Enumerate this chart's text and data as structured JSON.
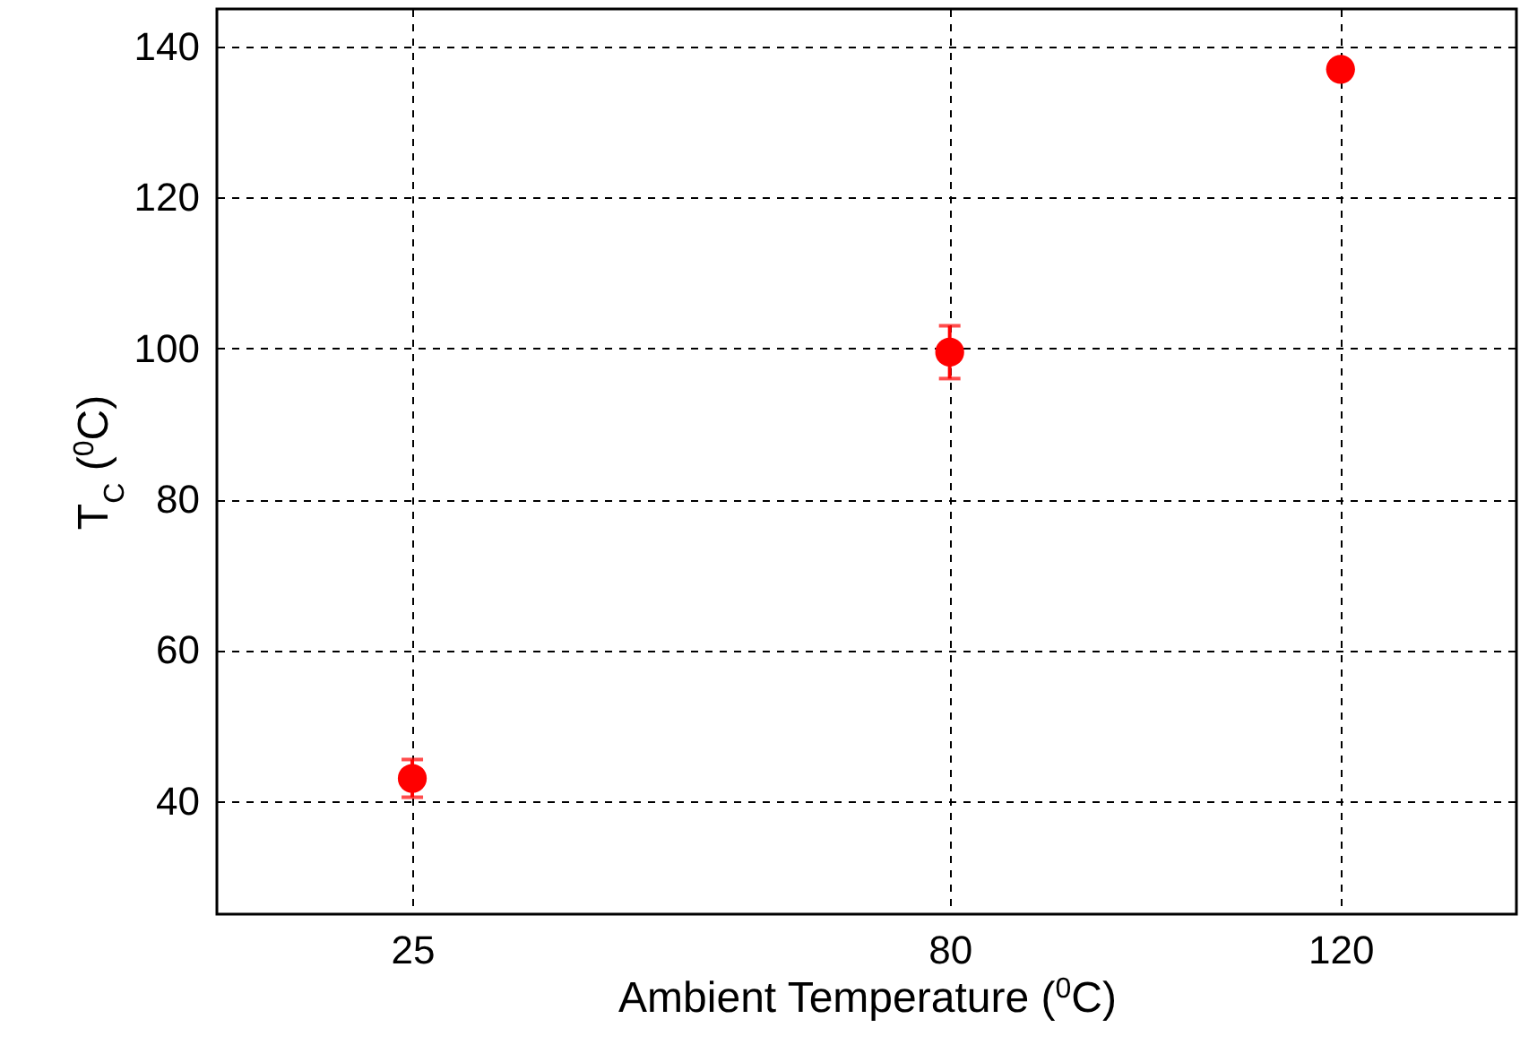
{
  "chart_data": {
    "type": "scatter",
    "xlabel": "Ambient Temperature ($^{0}$C)",
    "ylabel": "T$_{C}$ ($^{0}$C)",
    "x": [
      25,
      80,
      120
    ],
    "series": [
      {
        "color": "#ff0000",
        "values": [
          43,
          99.5,
          137
        ],
        "errors": [
          2.5,
          3.5,
          null
        ]
      }
    ],
    "xlim": [
      5,
      138
    ],
    "xticks": [
      25,
      80,
      120
    ],
    "ylim": [
      25,
      145
    ],
    "yticks": [
      40,
      60,
      80,
      100,
      120,
      140
    ],
    "grid": true,
    "marker": "circle"
  }
}
